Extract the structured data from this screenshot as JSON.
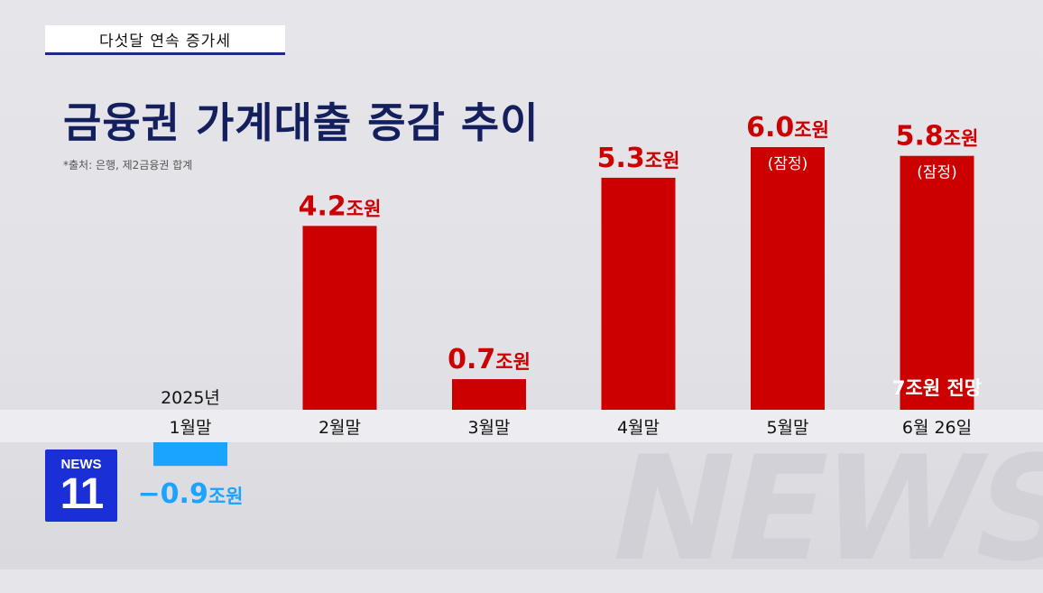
{
  "header": {
    "tag": "다섯달 연속 증가세",
    "title": "금융권 가계대출 증감 추이",
    "source": "*출처: 은행, 제2금융권 합계"
  },
  "logo": {
    "line1": "NEWS",
    "line2": "11"
  },
  "watermark": "NEWS",
  "colors": {
    "positive": "#cc0000",
    "negative": "#1aa3ff",
    "title": "#14205e"
  },
  "chart_data": {
    "type": "bar",
    "categories": [
      "1월말",
      "2월말",
      "3월말",
      "4월말",
      "5월말",
      "6월 26일"
    ],
    "values": [
      -0.9,
      4.2,
      0.7,
      5.3,
      6.0,
      5.8
    ],
    "value_labels": [
      "−0.9조원",
      "4.2조원",
      "0.7조원",
      "5.3조원",
      "6.0조원",
      "5.8조원"
    ],
    "notes": [
      "",
      "",
      "",
      "",
      "(잠정)",
      "(잠정)"
    ],
    "category_prefix": "2025년",
    "annotation": "7조원 전망",
    "unit": "조원",
    "title": "",
    "xlabel": "",
    "ylabel": ""
  }
}
